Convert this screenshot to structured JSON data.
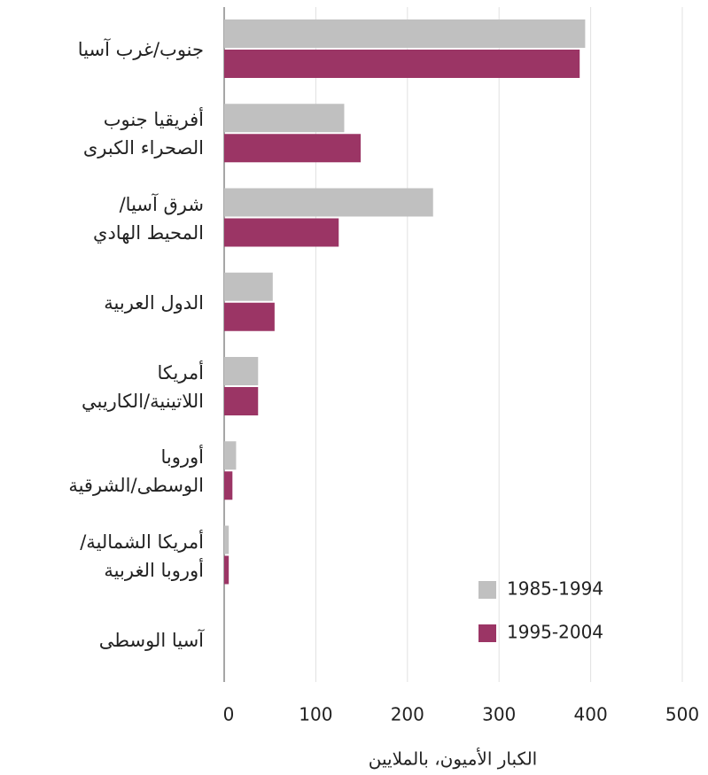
{
  "chart_data": {
    "type": "hbar",
    "categories": [
      "جنوب/غرب آسيا",
      "أفريقيا جنوب\nالصحراء الكبرى",
      "شرق آسيا/\nالمحيط الهادي",
      "الدول العربية",
      "أمريكا\nاللاتينية/الكاريبي",
      "أوروبا\nالوسطى/الشرقية",
      "أمريكا الشمالية/\nأوروبا الغربية",
      "آسيا الوسطى"
    ],
    "series": [
      {
        "name": "1985-1994",
        "color": "#c0c0c0",
        "values": [
          394,
          131,
          228,
          53,
          37,
          13,
          5,
          0
        ]
      },
      {
        "name": "1995-2004",
        "color": "#9b3565",
        "values": [
          388,
          149,
          125,
          55,
          37,
          9,
          5,
          0
        ]
      }
    ],
    "xlabel": "الكبار الأميون، بالملايين",
    "xlim": [
      0,
      500
    ],
    "xticks": [
      0,
      100,
      200,
      300,
      400,
      500
    ],
    "grid": true
  }
}
